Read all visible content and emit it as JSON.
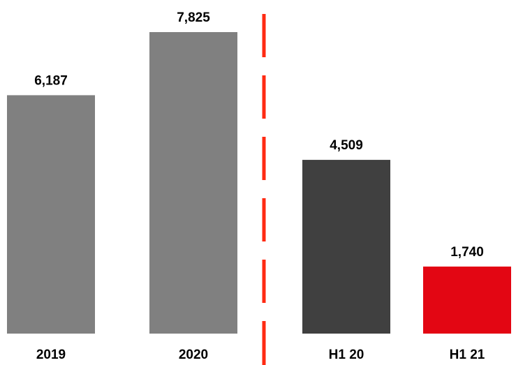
{
  "chart_data": {
    "type": "bar",
    "categories": [
      "2019",
      "2020",
      "H1 20",
      "H1 21"
    ],
    "values": [
      6187,
      7825,
      4509,
      1740
    ],
    "value_labels": [
      "6,187",
      "7,825",
      "4,509",
      "1,740"
    ],
    "bar_colors": [
      "#808080",
      "#808080",
      "#404040",
      "#e30613"
    ],
    "separator_color": "#ff2a12",
    "title": "",
    "xlabel": "",
    "ylabel": "",
    "ylim": [
      0,
      7825
    ],
    "grid": false,
    "legend": "none"
  }
}
